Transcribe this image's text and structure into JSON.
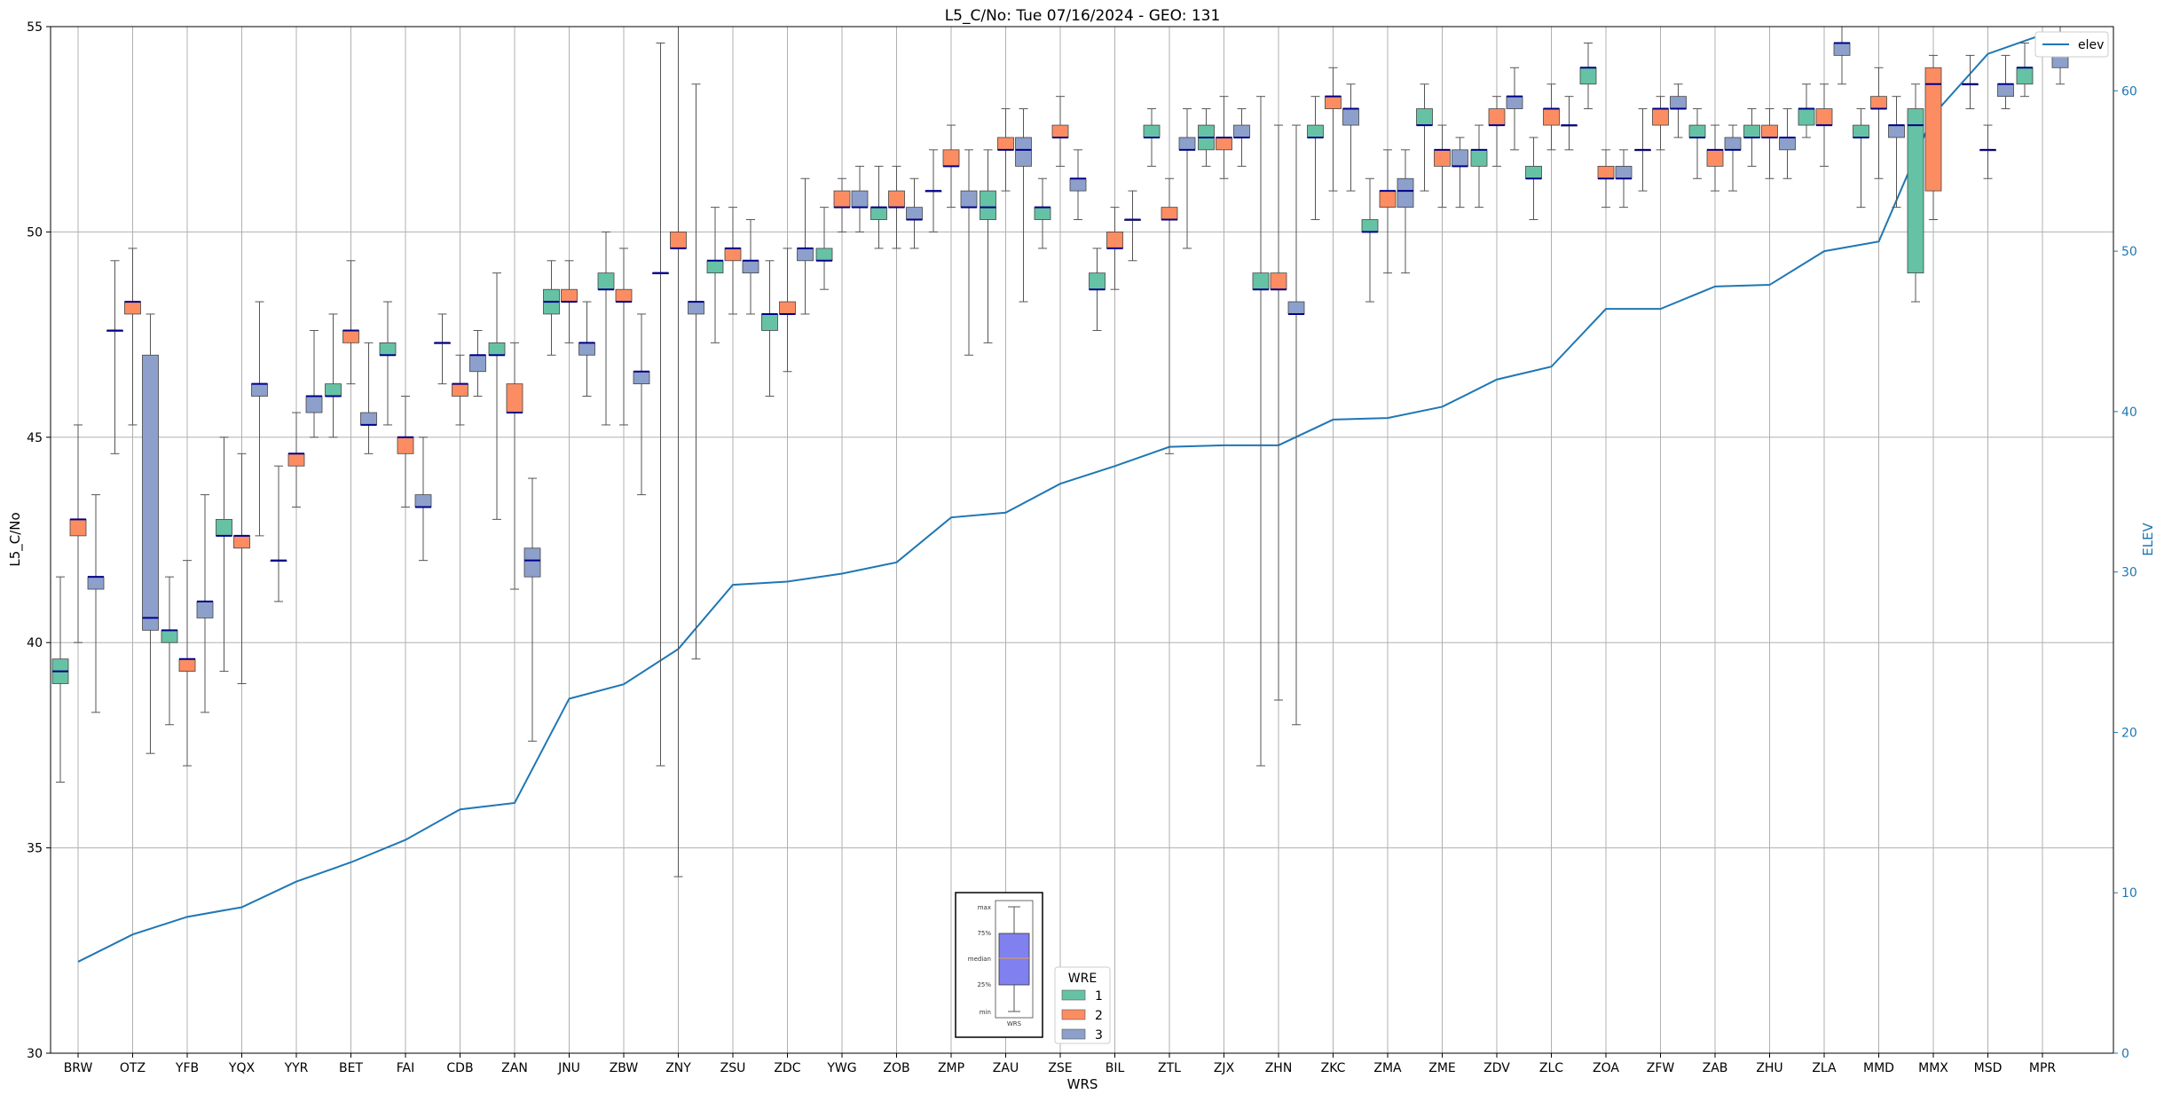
{
  "chart_data": {
    "type": "box",
    "title": "L5_C/No: Tue 07/16/2024 - GEO: 131",
    "xlabel": "WRS",
    "ylabel": "L5_C/No",
    "y2label": "ELEV",
    "ylim": [
      30,
      55
    ],
    "y2lim": [
      0,
      64
    ],
    "yticks": [
      30,
      35,
      40,
      45,
      50,
      55
    ],
    "y2ticks": [
      0,
      10,
      20,
      30,
      40,
      50,
      60
    ],
    "grid": true,
    "categories": [
      "BRW",
      "OTZ",
      "YFB",
      "YQX",
      "YYR",
      "BET",
      "FAI",
      "CDB",
      "ZAN",
      "JNU",
      "ZBW",
      "ZNY",
      "ZSU",
      "ZDC",
      "YWG",
      "ZOB",
      "ZMP",
      "ZAU",
      "ZSE",
      "BIL",
      "ZTL",
      "ZJX",
      "ZHN",
      "ZKC",
      "ZMA",
      "ZME",
      "ZDV",
      "ZLC",
      "ZOA",
      "ZFW",
      "ZAB",
      "ZHU",
      "ZLA",
      "MMD",
      "MMX",
      "MSD",
      "MPR"
    ],
    "wre_colors": {
      "1": "#66c2a5",
      "2": "#fc8d62",
      "3": "#8da0cb"
    },
    "median_color": "#00008b",
    "legend": {
      "title": "WRE",
      "entries": [
        "1",
        "2",
        "3"
      ],
      "position": "bottom-center"
    },
    "elev_legend": {
      "label": "elev",
      "color": "#1f77b4",
      "position": "top-right"
    },
    "boxes": [
      {
        "site": "BRW",
        "wre": 1,
        "min": 36.6,
        "q1": 39.0,
        "median": 39.3,
        "q3": 39.6,
        "max": 41.6
      },
      {
        "site": "BRW",
        "wre": 2,
        "min": 40.0,
        "q1": 42.6,
        "median": 43.0,
        "q3": 43.0,
        "max": 45.3
      },
      {
        "site": "BRW",
        "wre": 3,
        "min": 38.3,
        "q1": 41.3,
        "median": 41.6,
        "q3": 41.6,
        "max": 43.6
      },
      {
        "site": "OTZ",
        "wre": 1,
        "min": 44.6,
        "q1": 47.6,
        "median": 47.6,
        "q3": 47.6,
        "max": 49.3
      },
      {
        "site": "OTZ",
        "wre": 2,
        "min": 45.3,
        "q1": 48.0,
        "median": 48.3,
        "q3": 48.3,
        "max": 49.6
      },
      {
        "site": "OTZ",
        "wre": 3,
        "min": 37.3,
        "q1": 40.3,
        "median": 40.6,
        "q3": 47.0,
        "max": 48.0
      },
      {
        "site": "YFB",
        "wre": 1,
        "min": 38.0,
        "q1": 40.0,
        "median": 40.3,
        "q3": 40.3,
        "max": 41.6
      },
      {
        "site": "YFB",
        "wre": 2,
        "min": 37.0,
        "q1": 39.3,
        "median": 39.6,
        "q3": 39.6,
        "max": 42.0
      },
      {
        "site": "YFB",
        "wre": 3,
        "min": 38.3,
        "q1": 40.6,
        "median": 41.0,
        "q3": 41.0,
        "max": 43.6
      },
      {
        "site": "YQX",
        "wre": 1,
        "min": 39.3,
        "q1": 42.6,
        "median": 42.6,
        "q3": 43.0,
        "max": 45.0
      },
      {
        "site": "YQX",
        "wre": 2,
        "min": 39.0,
        "q1": 42.3,
        "median": 42.6,
        "q3": 42.6,
        "max": 44.6
      },
      {
        "site": "YQX",
        "wre": 3,
        "min": 42.6,
        "q1": 46.0,
        "median": 46.3,
        "q3": 46.3,
        "max": 48.3
      },
      {
        "site": "YYR",
        "wre": 1,
        "min": 41.0,
        "q1": 42.0,
        "median": 42.0,
        "q3": 42.0,
        "max": 44.3
      },
      {
        "site": "YYR",
        "wre": 2,
        "min": 43.3,
        "q1": 44.3,
        "median": 44.6,
        "q3": 44.6,
        "max": 45.6
      },
      {
        "site": "YYR",
        "wre": 3,
        "min": 45.0,
        "q1": 45.6,
        "median": 46.0,
        "q3": 46.0,
        "max": 47.6
      },
      {
        "site": "BET",
        "wre": 1,
        "min": 45.0,
        "q1": 46.0,
        "median": 46.0,
        "q3": 46.3,
        "max": 48.0
      },
      {
        "site": "BET",
        "wre": 2,
        "min": 46.3,
        "q1": 47.3,
        "median": 47.6,
        "q3": 47.6,
        "max": 49.3
      },
      {
        "site": "BET",
        "wre": 3,
        "min": 44.6,
        "q1": 45.3,
        "median": 45.3,
        "q3": 45.6,
        "max": 47.3
      },
      {
        "site": "FAI",
        "wre": 1,
        "min": 45.3,
        "q1": 47.0,
        "median": 47.0,
        "q3": 47.3,
        "max": 48.3
      },
      {
        "site": "FAI",
        "wre": 2,
        "min": 43.3,
        "q1": 44.6,
        "median": 45.0,
        "q3": 45.0,
        "max": 46.0
      },
      {
        "site": "FAI",
        "wre": 3,
        "min": 42.0,
        "q1": 43.3,
        "median": 43.3,
        "q3": 43.6,
        "max": 45.0
      },
      {
        "site": "CDB",
        "wre": 1,
        "min": 46.3,
        "q1": 47.3,
        "median": 47.3,
        "q3": 47.3,
        "max": 48.0
      },
      {
        "site": "CDB",
        "wre": 2,
        "min": 45.3,
        "q1": 46.0,
        "median": 46.3,
        "q3": 46.3,
        "max": 47.0
      },
      {
        "site": "CDB",
        "wre": 3,
        "min": 46.0,
        "q1": 46.6,
        "median": 47.0,
        "q3": 47.0,
        "max": 47.6
      },
      {
        "site": "ZAN",
        "wre": 1,
        "min": 43.0,
        "q1": 47.0,
        "median": 47.0,
        "q3": 47.3,
        "max": 49.0
      },
      {
        "site": "ZAN",
        "wre": 2,
        "min": 41.3,
        "q1": 45.6,
        "median": 45.6,
        "q3": 46.3,
        "max": 47.3
      },
      {
        "site": "ZAN",
        "wre": 3,
        "min": 37.6,
        "q1": 41.6,
        "median": 42.0,
        "q3": 42.3,
        "max": 44.0
      },
      {
        "site": "JNU",
        "wre": 1,
        "min": 47.0,
        "q1": 48.0,
        "median": 48.3,
        "q3": 48.6,
        "max": 49.3
      },
      {
        "site": "JNU",
        "wre": 2,
        "min": 47.3,
        "q1": 48.3,
        "median": 48.3,
        "q3": 48.6,
        "max": 49.3
      },
      {
        "site": "JNU",
        "wre": 3,
        "min": 46.0,
        "q1": 47.0,
        "median": 47.3,
        "q3": 47.3,
        "max": 48.3
      },
      {
        "site": "ZBW",
        "wre": 1,
        "min": 45.3,
        "q1": 48.6,
        "median": 48.6,
        "q3": 49.0,
        "max": 50.0
      },
      {
        "site": "ZBW",
        "wre": 2,
        "min": 45.3,
        "q1": 48.3,
        "median": 48.3,
        "q3": 48.6,
        "max": 49.6
      },
      {
        "site": "ZBW",
        "wre": 3,
        "min": 43.6,
        "q1": 46.3,
        "median": 46.6,
        "q3": 46.6,
        "max": 48.0
      },
      {
        "site": "ZNY",
        "wre": 1,
        "min": 37.0,
        "q1": 49.0,
        "median": 49.0,
        "q3": 49.0,
        "max": 54.6
      },
      {
        "site": "ZNY",
        "wre": 2,
        "min": 34.3,
        "q1": 49.6,
        "median": 49.6,
        "q3": 50.0,
        "max": 55.0
      },
      {
        "site": "ZNY",
        "wre": 3,
        "min": 39.6,
        "q1": 48.0,
        "median": 48.3,
        "q3": 48.3,
        "max": 53.6
      },
      {
        "site": "ZSU",
        "wre": 1,
        "min": 47.3,
        "q1": 49.0,
        "median": 49.3,
        "q3": 49.3,
        "max": 50.6
      },
      {
        "site": "ZSU",
        "wre": 2,
        "min": 48.0,
        "q1": 49.3,
        "median": 49.6,
        "q3": 49.6,
        "max": 50.6
      },
      {
        "site": "ZSU",
        "wre": 3,
        "min": 48.0,
        "q1": 49.0,
        "median": 49.3,
        "q3": 49.3,
        "max": 50.3
      },
      {
        "site": "ZDC",
        "wre": 1,
        "min": 46.0,
        "q1": 47.6,
        "median": 48.0,
        "q3": 48.0,
        "max": 49.3
      },
      {
        "site": "ZDC",
        "wre": 2,
        "min": 46.6,
        "q1": 48.0,
        "median": 48.0,
        "q3": 48.3,
        "max": 49.6
      },
      {
        "site": "ZDC",
        "wre": 3,
        "min": 48.0,
        "q1": 49.3,
        "median": 49.6,
        "q3": 49.6,
        "max": 51.3
      },
      {
        "site": "YWG",
        "wre": 1,
        "min": 48.6,
        "q1": 49.3,
        "median": 49.3,
        "q3": 49.6,
        "max": 50.6
      },
      {
        "site": "YWG",
        "wre": 2,
        "min": 50.0,
        "q1": 50.6,
        "median": 50.6,
        "q3": 51.0,
        "max": 51.3
      },
      {
        "site": "YWG",
        "wre": 3,
        "min": 50.0,
        "q1": 50.6,
        "median": 50.6,
        "q3": 51.0,
        "max": 51.6
      },
      {
        "site": "ZOB",
        "wre": 1,
        "min": 49.6,
        "q1": 50.3,
        "median": 50.6,
        "q3": 50.6,
        "max": 51.6
      },
      {
        "site": "ZOB",
        "wre": 2,
        "min": 49.6,
        "q1": 50.6,
        "median": 50.6,
        "q3": 51.0,
        "max": 51.6
      },
      {
        "site": "ZOB",
        "wre": 3,
        "min": 49.6,
        "q1": 50.3,
        "median": 50.3,
        "q3": 50.6,
        "max": 51.3
      },
      {
        "site": "ZMP",
        "wre": 1,
        "min": 50.0,
        "q1": 51.0,
        "median": 51.0,
        "q3": 51.0,
        "max": 52.0
      },
      {
        "site": "ZMP",
        "wre": 2,
        "min": 50.6,
        "q1": 51.6,
        "median": 51.6,
        "q3": 52.0,
        "max": 52.6
      },
      {
        "site": "ZMP",
        "wre": 3,
        "min": 47.0,
        "q1": 50.6,
        "median": 50.6,
        "q3": 51.0,
        "max": 52.0
      },
      {
        "site": "ZAU",
        "wre": 1,
        "min": 47.3,
        "q1": 50.3,
        "median": 50.6,
        "q3": 51.0,
        "max": 52.0
      },
      {
        "site": "ZAU",
        "wre": 2,
        "min": 51.0,
        "q1": 52.0,
        "median": 52.0,
        "q3": 52.3,
        "max": 53.0
      },
      {
        "site": "ZAU",
        "wre": 3,
        "min": 48.3,
        "q1": 51.6,
        "median": 52.0,
        "q3": 52.3,
        "max": 53.0
      },
      {
        "site": "ZSE",
        "wre": 1,
        "min": 49.6,
        "q1": 50.3,
        "median": 50.6,
        "q3": 50.6,
        "max": 51.3
      },
      {
        "site": "ZSE",
        "wre": 2,
        "min": 51.6,
        "q1": 52.3,
        "median": 52.3,
        "q3": 52.6,
        "max": 53.3
      },
      {
        "site": "ZSE",
        "wre": 3,
        "min": 50.3,
        "q1": 51.0,
        "median": 51.3,
        "q3": 51.3,
        "max": 52.0
      },
      {
        "site": "BIL",
        "wre": 1,
        "min": 47.6,
        "q1": 48.6,
        "median": 48.6,
        "q3": 49.0,
        "max": 49.6
      },
      {
        "site": "BIL",
        "wre": 2,
        "min": 48.6,
        "q1": 49.6,
        "median": 49.6,
        "q3": 50.0,
        "max": 50.6
      },
      {
        "site": "BIL",
        "wre": 3,
        "min": 49.3,
        "q1": 50.3,
        "median": 50.3,
        "q3": 50.3,
        "max": 51.0
      },
      {
        "site": "ZTL",
        "wre": 1,
        "min": 51.6,
        "q1": 52.3,
        "median": 52.3,
        "q3": 52.6,
        "max": 53.0
      },
      {
        "site": "ZTL",
        "wre": 2,
        "min": 44.6,
        "q1": 50.3,
        "median": 50.3,
        "q3": 50.6,
        "max": 51.3
      },
      {
        "site": "ZTL",
        "wre": 3,
        "min": 49.6,
        "q1": 52.0,
        "median": 52.0,
        "q3": 52.3,
        "max": 53.0
      },
      {
        "site": "ZJX",
        "wre": 1,
        "min": 51.6,
        "q1": 52.0,
        "median": 52.3,
        "q3": 52.6,
        "max": 53.0
      },
      {
        "site": "ZJX",
        "wre": 2,
        "min": 51.3,
        "q1": 52.0,
        "median": 52.3,
        "q3": 52.3,
        "max": 53.3
      },
      {
        "site": "ZJX",
        "wre": 3,
        "min": 51.6,
        "q1": 52.3,
        "median": 52.3,
        "q3": 52.6,
        "max": 53.0
      },
      {
        "site": "ZHN",
        "wre": 1,
        "min": 37.0,
        "q1": 48.6,
        "median": 48.6,
        "q3": 49.0,
        "max": 53.3
      },
      {
        "site": "ZHN",
        "wre": 2,
        "min": 38.6,
        "q1": 48.6,
        "median": 48.6,
        "q3": 49.0,
        "max": 52.6
      },
      {
        "site": "ZHN",
        "wre": 3,
        "min": 38.0,
        "q1": 48.0,
        "median": 48.0,
        "q3": 48.3,
        "max": 52.6
      },
      {
        "site": "ZKC",
        "wre": 1,
        "min": 50.3,
        "q1": 52.3,
        "median": 52.3,
        "q3": 52.6,
        "max": 53.3
      },
      {
        "site": "ZKC",
        "wre": 2,
        "min": 51.0,
        "q1": 53.0,
        "median": 53.3,
        "q3": 53.3,
        "max": 54.0
      },
      {
        "site": "ZKC",
        "wre": 3,
        "min": 51.0,
        "q1": 52.6,
        "median": 53.0,
        "q3": 53.0,
        "max": 53.6
      },
      {
        "site": "ZMA",
        "wre": 1,
        "min": 48.3,
        "q1": 50.0,
        "median": 50.0,
        "q3": 50.3,
        "max": 51.3
      },
      {
        "site": "ZMA",
        "wre": 2,
        "min": 49.0,
        "q1": 50.6,
        "median": 51.0,
        "q3": 51.0,
        "max": 52.0
      },
      {
        "site": "ZMA",
        "wre": 3,
        "min": 49.0,
        "q1": 50.6,
        "median": 51.0,
        "q3": 51.3,
        "max": 52.0
      },
      {
        "site": "ZME",
        "wre": 1,
        "min": 51.0,
        "q1": 52.6,
        "median": 52.6,
        "q3": 53.0,
        "max": 53.6
      },
      {
        "site": "ZME",
        "wre": 2,
        "min": 50.6,
        "q1": 51.6,
        "median": 52.0,
        "q3": 52.0,
        "max": 52.6
      },
      {
        "site": "ZME",
        "wre": 3,
        "min": 50.6,
        "q1": 51.6,
        "median": 51.6,
        "q3": 52.0,
        "max": 52.3
      },
      {
        "site": "ZDV",
        "wre": 1,
        "min": 50.6,
        "q1": 51.6,
        "median": 52.0,
        "q3": 52.0,
        "max": 52.6
      },
      {
        "site": "ZDV",
        "wre": 2,
        "min": 51.6,
        "q1": 52.6,
        "median": 52.6,
        "q3": 53.0,
        "max": 53.3
      },
      {
        "site": "ZDV",
        "wre": 3,
        "min": 52.0,
        "q1": 53.0,
        "median": 53.3,
        "q3": 53.3,
        "max": 54.0
      },
      {
        "site": "ZLC",
        "wre": 1,
        "min": 50.3,
        "q1": 51.3,
        "median": 51.3,
        "q3": 51.6,
        "max": 52.3
      },
      {
        "site": "ZLC",
        "wre": 2,
        "min": 52.0,
        "q1": 52.6,
        "median": 53.0,
        "q3": 53.0,
        "max": 53.6
      },
      {
        "site": "ZLC",
        "wre": 3,
        "min": 52.0,
        "q1": 52.6,
        "median": 52.6,
        "q3": 52.6,
        "max": 53.3
      },
      {
        "site": "ZOA",
        "wre": 1,
        "min": 53.0,
        "q1": 53.6,
        "median": 54.0,
        "q3": 54.0,
        "max": 54.6
      },
      {
        "site": "ZOA",
        "wre": 2,
        "min": 50.6,
        "q1": 51.3,
        "median": 51.3,
        "q3": 51.6,
        "max": 52.0
      },
      {
        "site": "ZOA",
        "wre": 3,
        "min": 50.6,
        "q1": 51.3,
        "median": 51.3,
        "q3": 51.6,
        "max": 52.0
      },
      {
        "site": "ZFW",
        "wre": 1,
        "min": 51.0,
        "q1": 52.0,
        "median": 52.0,
        "q3": 52.0,
        "max": 53.0
      },
      {
        "site": "ZFW",
        "wre": 2,
        "min": 52.0,
        "q1": 52.6,
        "median": 53.0,
        "q3": 53.0,
        "max": 53.3
      },
      {
        "site": "ZFW",
        "wre": 3,
        "min": 52.3,
        "q1": 53.0,
        "median": 53.0,
        "q3": 53.3,
        "max": 53.6
      },
      {
        "site": "ZAB",
        "wre": 1,
        "min": 51.3,
        "q1": 52.3,
        "median": 52.3,
        "q3": 52.6,
        "max": 53.0
      },
      {
        "site": "ZAB",
        "wre": 2,
        "min": 51.0,
        "q1": 51.6,
        "median": 52.0,
        "q3": 52.0,
        "max": 52.6
      },
      {
        "site": "ZAB",
        "wre": 3,
        "min": 51.0,
        "q1": 52.0,
        "median": 52.0,
        "q3": 52.3,
        "max": 52.6
      },
      {
        "site": "ZHU",
        "wre": 1,
        "min": 51.6,
        "q1": 52.3,
        "median": 52.3,
        "q3": 52.6,
        "max": 53.0
      },
      {
        "site": "ZHU",
        "wre": 2,
        "min": 51.3,
        "q1": 52.3,
        "median": 52.3,
        "q3": 52.6,
        "max": 53.0
      },
      {
        "site": "ZHU",
        "wre": 3,
        "min": 51.3,
        "q1": 52.0,
        "median": 52.3,
        "q3": 52.3,
        "max": 53.0
      },
      {
        "site": "ZLA",
        "wre": 1,
        "min": 52.3,
        "q1": 52.6,
        "median": 53.0,
        "q3": 53.0,
        "max": 53.6
      },
      {
        "site": "ZLA",
        "wre": 2,
        "min": 51.6,
        "q1": 52.6,
        "median": 52.6,
        "q3": 53.0,
        "max": 53.6
      },
      {
        "site": "ZLA",
        "wre": 3,
        "min": 53.6,
        "q1": 54.3,
        "median": 54.6,
        "q3": 54.6,
        "max": 55.0
      },
      {
        "site": "MMD",
        "wre": 1,
        "min": 50.6,
        "q1": 52.3,
        "median": 52.3,
        "q3": 52.6,
        "max": 53.0
      },
      {
        "site": "MMD",
        "wre": 2,
        "min": 51.3,
        "q1": 53.0,
        "median": 53.0,
        "q3": 53.3,
        "max": 54.0
      },
      {
        "site": "MMD",
        "wre": 3,
        "min": 50.6,
        "q1": 52.3,
        "median": 52.6,
        "q3": 52.6,
        "max": 53.3
      },
      {
        "site": "MMX",
        "wre": 1,
        "min": 48.3,
        "q1": 49.0,
        "median": 52.6,
        "q3": 53.0,
        "max": 53.6
      },
      {
        "site": "MMX",
        "wre": 2,
        "min": 50.3,
        "q1": 51.0,
        "median": 53.6,
        "q3": 54.0,
        "max": 54.3
      },
      {
        "site": "MSD",
        "wre": 2,
        "min": 51.3,
        "q1": 52.0,
        "median": 52.0,
        "q3": 52.0,
        "max": 52.6
      },
      {
        "site": "MSD",
        "wre": 1,
        "min": 53.0,
        "q1": 53.6,
        "median": 53.6,
        "q3": 53.6,
        "max": 54.3
      },
      {
        "site": "MSD",
        "wre": 3,
        "min": 53.0,
        "q1": 53.3,
        "median": 53.6,
        "q3": 53.6,
        "max": 54.3
      },
      {
        "site": "MPR",
        "wre": 1,
        "min": 53.3,
        "q1": 53.6,
        "median": 54.0,
        "q3": 54.0,
        "max": 54.6
      },
      {
        "site": "MPR",
        "wre": 3,
        "min": 53.6,
        "q1": 54.0,
        "median": 54.3,
        "q3": 54.3,
        "max": 55.0
      }
    ],
    "elev": [
      5.7,
      7.4,
      8.5,
      9.1,
      10.7,
      11.9,
      13.3,
      15.2,
      15.6,
      22.1,
      23.0,
      25.2,
      29.2,
      29.4,
      29.9,
      30.6,
      33.4,
      33.7,
      35.5,
      36.6,
      37.8,
      37.9,
      37.9,
      39.5,
      39.6,
      40.3,
      42.0,
      42.8,
      46.4,
      46.4,
      47.8,
      47.9,
      50.0,
      50.6,
      58.5,
      62.3,
      63.5
    ],
    "inset_legend": {
      "labels": [
        "max",
        "75%",
        "median",
        "25%",
        "min"
      ],
      "xlabel": "WRS"
    }
  }
}
